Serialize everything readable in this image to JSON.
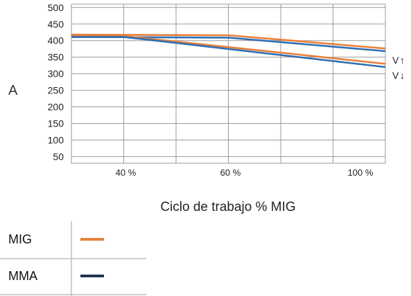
{
  "chart_data": {
    "type": "line",
    "xlabel": "Ciclo de trabajo % MIG",
    "ylabel": "A",
    "x_ticks": [
      "40 %",
      "60 %",
      "100 %"
    ],
    "y_ticks": [
      "500",
      "450",
      "400",
      "350",
      "300",
      "250",
      "200",
      "150",
      "100",
      "50"
    ],
    "ylim": [
      30,
      510
    ],
    "grid": true,
    "annotations": [
      {
        "text": "V",
        "symbol": "↑",
        "series_hint": "upper"
      },
      {
        "text": "V",
        "symbol": "↓",
        "series_hint": "lower"
      }
    ],
    "series": [
      {
        "name": "MIG",
        "color": "#e8803a",
        "variant": "upper",
        "x": [
          0,
          3,
          6
        ],
        "y": [
          418,
          416,
          376
        ]
      },
      {
        "name": "MMA",
        "color": "#2f6fb3",
        "variant": "upper",
        "x": [
          0,
          3,
          6
        ],
        "y": [
          411,
          409,
          368
        ]
      },
      {
        "name": "MIG",
        "color": "#e8803a",
        "variant": "lower",
        "x": [
          0,
          1,
          6
        ],
        "y": [
          414,
          414,
          330
        ]
      },
      {
        "name": "MMA",
        "color": "#2f6fb3",
        "variant": "lower",
        "x": [
          0,
          1,
          6
        ],
        "y": [
          411,
          411,
          320
        ]
      }
    ],
    "legend": [
      {
        "label": "MIG",
        "color": "#e8803a"
      },
      {
        "label": "MMA",
        "color": "#243154"
      }
    ]
  }
}
